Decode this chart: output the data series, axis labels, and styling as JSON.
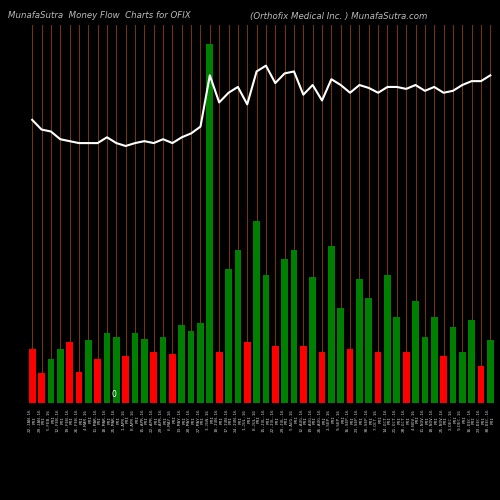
{
  "title_left": "MunafaSutra  Money Flow  Charts for OFIX",
  "title_right": "(Orthofix Medical Inc. ) MunafaSutra.com",
  "background_color": "#000000",
  "grid_color": "#7B3800",
  "line_color": "#ffffff",
  "dates": [
    "22-JAN-16\nFRI",
    "29-JAN-16\nFRI",
    "5-FEB-16\nFRI",
    "12-FEB-16\nFRI",
    "19-FEB-16\nFRI",
    "26-FEB-16\nFRI",
    "4-MAR-16\nFRI",
    "11-MAR-16\nFRI",
    "18-MAR-16\nFRI",
    "25-MAR-16\nFRI",
    "1-APR-16\nFRI",
    "8-APR-16\nFRI",
    "15-APR-16\nFRI",
    "22-APR-16\nFRI",
    "29-APR-16\nFRI",
    "6-MAY-16\nFRI",
    "13-MAY-16\nFRI",
    "20-MAY-16\nFRI",
    "27-MAY-16\nFRI",
    "3-JUN-16\nFRI",
    "10-JUN-16\nFRI",
    "17-JUN-16\nFRI",
    "24-JUN-16\nFRI",
    "1-JUL-16\nFRI",
    "8-JUL-16\nFRI",
    "15-JUL-16\nFRI",
    "22-JUL-16\nFRI",
    "29-JUL-16\nFRI",
    "5-AUG-16\nFRI",
    "12-AUG-16\nFRI",
    "19-AUG-16\nFRI",
    "26-AUG-16\nFRI",
    "2-SEP-16\nFRI",
    "9-SEP-16\nFRI",
    "16-SEP-16\nFRI",
    "23-SEP-16\nFRI",
    "30-SEP-16\nFRI",
    "7-OCT-16\nFRI",
    "14-OCT-16\nFRI",
    "21-OCT-16\nFRI",
    "28-OCT-16\nFRI",
    "4-NOV-16\nFRI",
    "11-NOV-16\nFRI",
    "18-NOV-16\nFRI",
    "25-NOV-16\nFRI",
    "2-DEC-16\nFRI",
    "9-DEC-16\nFRI",
    "16-DEC-16\nFRI",
    "23-DEC-16\nFRI",
    "30-DEC-16\nFRI"
  ],
  "bar_values": [
    55,
    30,
    45,
    55,
    62,
    32,
    65,
    45,
    72,
    68,
    48,
    72,
    66,
    52,
    68,
    50,
    80,
    74,
    82,
    370,
    52,
    138,
    158,
    62,
    188,
    132,
    58,
    148,
    158,
    58,
    130,
    52,
    162,
    98,
    55,
    128,
    108,
    52,
    132,
    88,
    52,
    105,
    68,
    88,
    48,
    78,
    52,
    85,
    38,
    65
  ],
  "bar_colors": [
    "red",
    "red",
    "green",
    "green",
    "red",
    "red",
    "green",
    "red",
    "green",
    "green",
    "red",
    "green",
    "green",
    "red",
    "green",
    "red",
    "green",
    "green",
    "green",
    "green",
    "red",
    "green",
    "green",
    "red",
    "green",
    "green",
    "red",
    "green",
    "green",
    "red",
    "green",
    "red",
    "green",
    "green",
    "red",
    "green",
    "green",
    "red",
    "green",
    "green",
    "red",
    "green",
    "green",
    "green",
    "red",
    "green",
    "green",
    "green",
    "red",
    "green"
  ],
  "line_y": [
    292,
    282,
    280,
    272,
    270,
    268,
    268,
    268,
    274,
    268,
    265,
    268,
    270,
    268,
    272,
    268,
    274,
    278,
    285,
    338,
    310,
    320,
    326,
    308,
    342,
    348,
    330,
    340,
    342,
    318,
    328,
    312,
    334,
    328,
    320,
    328,
    325,
    320,
    326,
    326,
    324,
    328,
    322,
    326,
    320,
    322,
    328,
    332,
    332,
    338
  ],
  "ylim_min": 0,
  "ylim_max": 390,
  "zero_line_y": 0,
  "figsize": [
    5.0,
    5.0
  ],
  "dpi": 100
}
